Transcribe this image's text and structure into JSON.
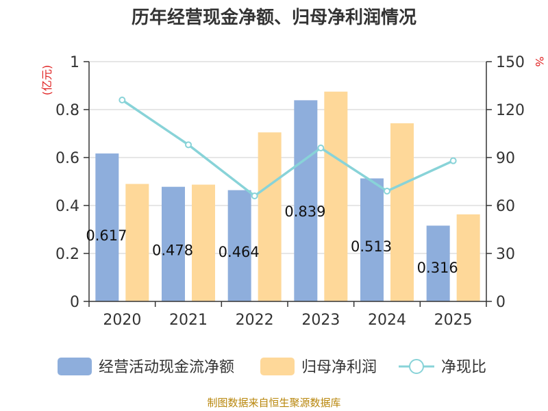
{
  "chart_data": {
    "type": "bar",
    "title": "历年经营现金净额、归母净利润情况",
    "categories": [
      "2020",
      "2021",
      "2022",
      "2023",
      "2024",
      "2025"
    ],
    "y_left": {
      "unit": "(亿元)",
      "ylim": [
        0,
        1
      ],
      "ticks": [
        "0",
        "0.2",
        "0.4",
        "0.6",
        "0.8",
        "1"
      ]
    },
    "y_right": {
      "unit": "%",
      "ylim": [
        0,
        150
      ],
      "ticks": [
        "0",
        "30",
        "60",
        "90",
        "120",
        "150"
      ]
    },
    "series": [
      {
        "name": "经营活动现金流净额",
        "type": "bar",
        "axis": "left",
        "color": "#8eaedc",
        "values": [
          0.617,
          0.478,
          0.464,
          0.839,
          0.513,
          0.316
        ],
        "data_labels": [
          "0.617",
          "0.478",
          "0.464",
          "0.839",
          "0.513",
          "0.316"
        ]
      },
      {
        "name": "归母净利润",
        "type": "bar",
        "axis": "left",
        "color": "#fed899",
        "values": [
          0.49,
          0.487,
          0.705,
          0.875,
          0.743,
          0.363
        ]
      },
      {
        "name": "净现比",
        "type": "line",
        "axis": "right",
        "color": "#88d3d8",
        "values": [
          126,
          98,
          66,
          96,
          69,
          88
        ]
      }
    ],
    "grid": true,
    "legend_position": "bottom"
  },
  "source": "制图数据来自恒生聚源数据库"
}
